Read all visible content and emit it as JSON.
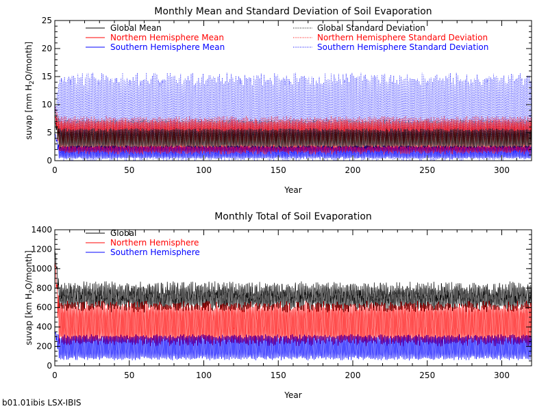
{
  "footer": "b01.01ibis LSX-IBIS",
  "chart_data": [
    {
      "type": "line",
      "title": "Monthly Mean and Standard Deviation of Soil Evaporation",
      "xlabel": "Year",
      "ylabel_parts": [
        "suvap [mm H",
        "2",
        "O/month]"
      ],
      "xlim": [
        0,
        320
      ],
      "ylim": [
        0,
        25
      ],
      "xticks": [
        0,
        50,
        100,
        150,
        200,
        250,
        300
      ],
      "yticks": [
        0,
        5,
        10,
        15,
        20,
        25
      ],
      "months_per_year": 12,
      "legend": [
        {
          "label": "Global Mean",
          "color": "#000000",
          "style": "solid"
        },
        {
          "label": "Northern Hemisphere Mean",
          "color": "#ff0000",
          "style": "solid"
        },
        {
          "label": "Southern Hemisphere Mean",
          "color": "#0000ff",
          "style": "solid"
        },
        {
          "label": "Global Standard Deviation",
          "color": "#000000",
          "style": "dotted"
        },
        {
          "label": "Northern Hemisphere Standard Deviation",
          "color": "#ff0000",
          "style": "dotted"
        },
        {
          "label": "Southern Hemisphere Standard Deviation",
          "color": "#0000ff",
          "style": "dotted"
        }
      ],
      "series": [
        {
          "name": "Southern Hemisphere Standard Deviation",
          "color": "#0000ff",
          "style": "dotted",
          "seasonal_min": 0.5,
          "seasonal_max": 14.5,
          "initial": 9,
          "noise": 1.2
        },
        {
          "name": "Northern Hemisphere Standard Deviation",
          "color": "#ff0000",
          "style": "dotted",
          "seasonal_min": 2.5,
          "seasonal_max": 7.5,
          "initial": 10,
          "noise": 0.5
        },
        {
          "name": "Global Standard Deviation",
          "color": "#000000",
          "style": "dotted",
          "seasonal_min": 2.5,
          "seasonal_max": 7.0,
          "initial": 9,
          "noise": 0.4
        },
        {
          "name": "Southern Hemisphere Mean",
          "color": "#0000ff",
          "style": "solid",
          "seasonal_min": 0.5,
          "seasonal_max": 2.5,
          "initial": 5,
          "noise": 0.2
        },
        {
          "name": "Northern Hemisphere Mean",
          "color": "#ff0000",
          "style": "solid",
          "seasonal_min": 1.5,
          "seasonal_max": 7.0,
          "initial": 8,
          "noise": 0.4
        },
        {
          "name": "Global Mean",
          "color": "#000000",
          "style": "solid",
          "seasonal_min": 2.5,
          "seasonal_max": 5.5,
          "initial": 7,
          "noise": 0.3
        }
      ]
    },
    {
      "type": "line",
      "title": "Monthly Total of Soil Evaporation",
      "xlabel": "Year",
      "ylabel_parts": [
        "suvap [km H",
        "2",
        "O/month]"
      ],
      "xlim": [
        0,
        320
      ],
      "ylim": [
        0,
        1400
      ],
      "xticks": [
        0,
        50,
        100,
        150,
        200,
        250,
        300
      ],
      "yticks": [
        0,
        200,
        400,
        600,
        800,
        1000,
        1200,
        1400
      ],
      "months_per_year": 12,
      "legend": [
        {
          "label": "Global",
          "color": "#000000",
          "style": "solid"
        },
        {
          "label": "Northern Hemisphere",
          "color": "#ff0000",
          "style": "solid"
        },
        {
          "label": "Southern Hemisphere",
          "color": "#0000ff",
          "style": "solid"
        }
      ],
      "series": [
        {
          "name": "Global",
          "color": "#000000",
          "style": "solid",
          "seasonal_min": 620,
          "seasonal_max": 800,
          "initial": 1200,
          "noise": 70
        },
        {
          "name": "Northern Hemisphere",
          "color": "#ff0000",
          "style": "solid",
          "seasonal_min": 250,
          "seasonal_max": 620,
          "initial": 1100,
          "noise": 50
        },
        {
          "name": "Southern Hemisphere",
          "color": "#0000ff",
          "style": "solid",
          "seasonal_min": 80,
          "seasonal_max": 300,
          "initial": 350,
          "noise": 25
        }
      ]
    }
  ]
}
